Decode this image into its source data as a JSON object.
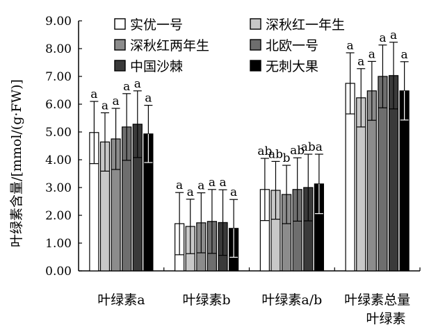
{
  "chart_data": {
    "type": "bar",
    "ylabel": "叶绿素含量/[mmol/(g·FW)]",
    "xlabel": "叶绿素",
    "ylim": [
      0,
      9
    ],
    "yticks": [
      "0.00",
      "1.00",
      "2.00",
      "3.00",
      "4.00",
      "5.00",
      "6.00",
      "7.00",
      "8.00",
      "9.00"
    ],
    "categories": [
      "叶绿素a",
      "叶绿素b",
      "叶绿素a/b",
      "叶绿素总量"
    ],
    "legend_position": "top",
    "series": [
      {
        "name": "实优一号",
        "color": "#ffffff",
        "values": [
          4.98,
          1.7,
          2.93,
          6.75
        ],
        "errors": [
          1.12,
          1.12,
          1.12,
          1.1
        ],
        "letters": [
          "a",
          "a",
          "ab",
          "a"
        ]
      },
      {
        "name": "深秋红一年生",
        "color": "#c8c8c8",
        "values": [
          4.64,
          1.6,
          2.9,
          6.23
        ],
        "errors": [
          1.05,
          0.98,
          1.04,
          1.05
        ],
        "letters": [
          "a",
          "a",
          "ab",
          "a"
        ]
      },
      {
        "name": "深秋红两年生",
        "color": "#8c8c8c",
        "values": [
          4.75,
          1.73,
          2.75,
          6.48
        ],
        "errors": [
          1.1,
          1.08,
          1.05,
          1.06
        ],
        "letters": [
          "a",
          "a",
          "b",
          "a"
        ]
      },
      {
        "name": "北欧一号",
        "color": "#6e6e6e",
        "values": [
          5.18,
          1.78,
          2.93,
          7.0
        ],
        "errors": [
          1.2,
          1.15,
          1.14,
          1.13
        ],
        "letters": [
          "a",
          "a",
          "ab",
          "a"
        ]
      },
      {
        "name": "中国沙棘",
        "color": "#3a3a3a",
        "values": [
          5.28,
          1.74,
          3.0,
          7.03
        ],
        "errors": [
          1.2,
          1.18,
          1.2,
          1.2
        ],
        "letters": [
          "a",
          "a",
          "ab",
          "a"
        ]
      },
      {
        "name": "无刺大果",
        "color": "#000000",
        "values": [
          4.93,
          1.53,
          3.13,
          6.48
        ],
        "errors": [
          1.03,
          1.04,
          1.07,
          1.05
        ],
        "letters": [
          "a",
          "a",
          "a",
          "a"
        ]
      }
    ]
  }
}
